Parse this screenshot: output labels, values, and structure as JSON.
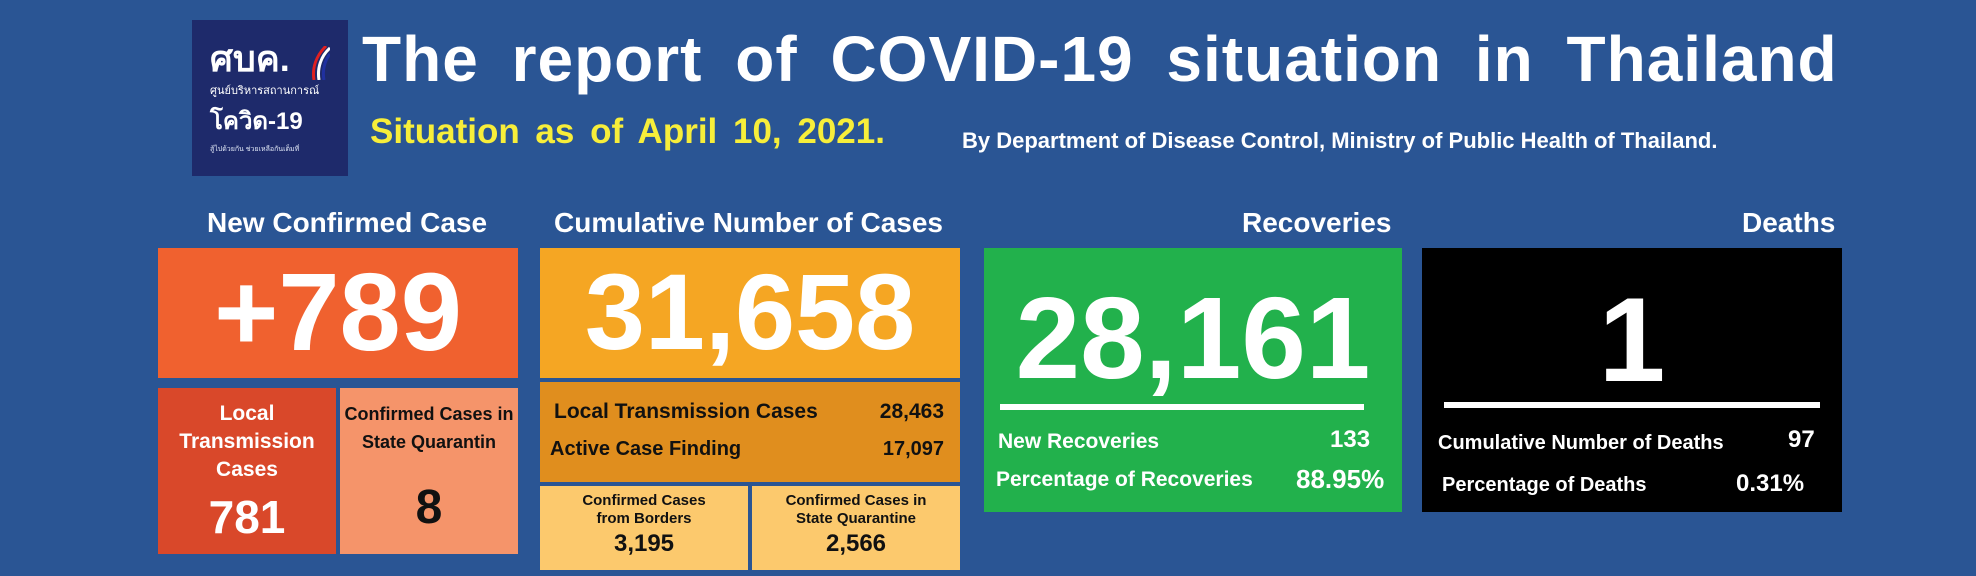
{
  "logo": {
    "text": "ศบค.",
    "subtitle": "ศูนย์บริหารสถานการณ์",
    "name": "โควิด-19",
    "tagline": "สู้ไปด้วยกัน ช่วยเหลือกันเต็มที่"
  },
  "header": {
    "title": "The report of COVID-19 situation in Thailand",
    "situation": "Situation as of April 10, 2021.",
    "byline": "By Department of Disease Control, Ministry of Public Health of Thailand."
  },
  "new_confirmed": {
    "heading": "New Confirmed Case",
    "value": "+789",
    "local_label": "Local Transmission Cases",
    "local_value": "781",
    "quarantine_label": "Confirmed Cases in State Quarantin",
    "quarantine_value": "8"
  },
  "cumulative": {
    "heading": "Cumulative Number of Cases",
    "value": "31,658",
    "local_label": "Local Transmission Cases",
    "local_value": "28,463",
    "active_label": "Active Case Finding",
    "active_value": "17,097",
    "borders_label": "Confirmed Cases from Borders",
    "borders_value": "3,195",
    "quarantine_label": "Confirmed Cases in State Quarantine",
    "quarantine_value": "2,566"
  },
  "recoveries": {
    "heading": "Recoveries",
    "value": "28,161",
    "new_label": "New Recoveries",
    "new_value": "133",
    "pct_label": "Percentage of Recoveries",
    "pct_value": "88.95%"
  },
  "deaths": {
    "heading": "Deaths",
    "value": "1",
    "cum_label": "Cumulative Number of Deaths",
    "cum_value": "97",
    "pct_label": "Percentage of Deaths",
    "pct_value": "0.31%"
  },
  "colors": {
    "background": "#2a5594",
    "orange": "#f0612f",
    "dark_orange": "#d9482a",
    "light_orange": "#f5946a",
    "gold": "#f5a623",
    "dark_gold": "#e08e1e",
    "pale_gold": "#fcc96d",
    "green": "#22b14c",
    "black": "#000000",
    "yellow": "#f7ee3a"
  }
}
